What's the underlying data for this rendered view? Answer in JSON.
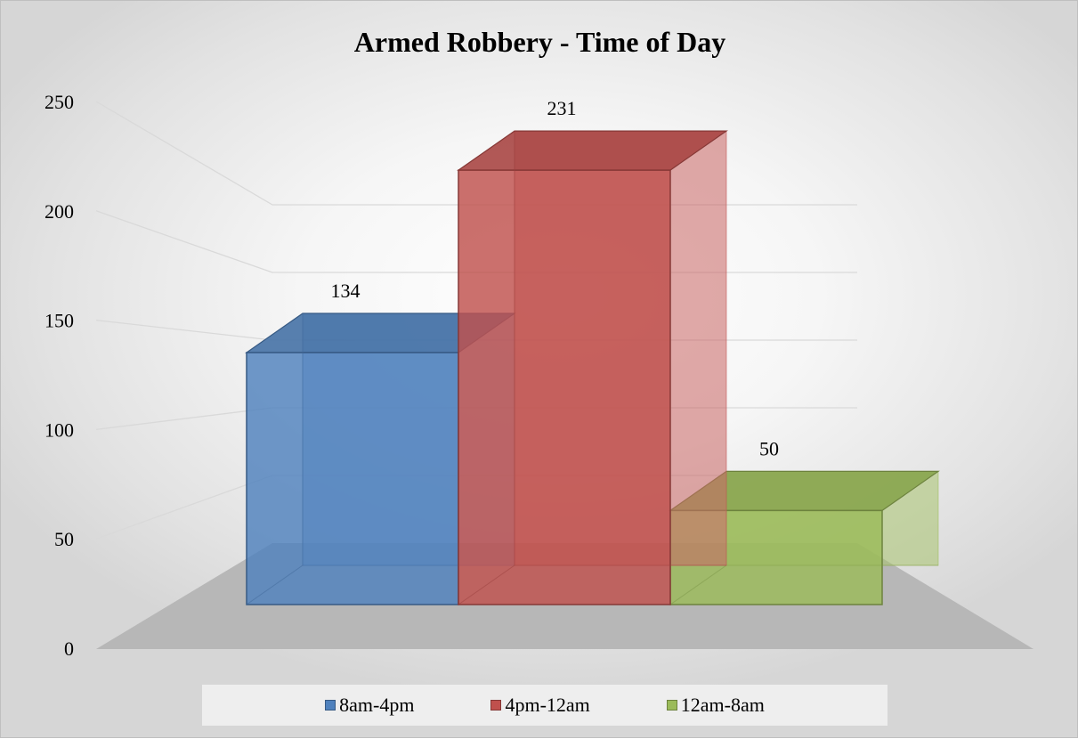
{
  "chart_data": {
    "type": "bar",
    "title": "Armed Robbery - Time of Day",
    "categories": [
      "8am-4pm",
      "4pm-12am",
      "12am-8am"
    ],
    "values": [
      134,
      231,
      50
    ],
    "ylim": [
      0,
      250
    ],
    "yticks": [
      0,
      50,
      100,
      150,
      200,
      250
    ],
    "colors": [
      "#4f81bd",
      "#c0504d",
      "#9bbb59"
    ],
    "legend_position": "bottom",
    "grid": true,
    "style": "3d"
  }
}
